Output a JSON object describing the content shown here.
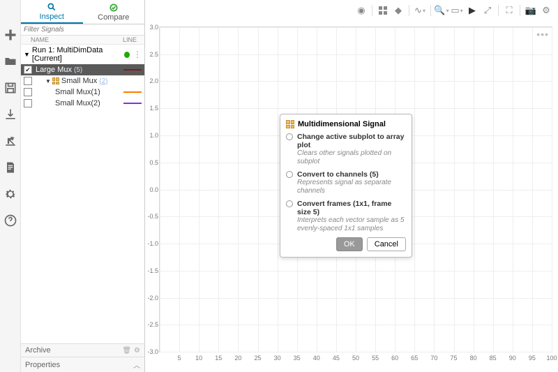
{
  "tabs": {
    "inspect": "Inspect",
    "compare": "Compare"
  },
  "filter_placeholder": "Filter Signals",
  "headers": {
    "name": "NAME",
    "line": "LINE"
  },
  "run": {
    "label": "Run 1: MultiDimData [Current]",
    "dot_color": "#1faa00"
  },
  "signals": [
    {
      "name": "Large Mux",
      "count": "(5)",
      "checked": true,
      "selected": true,
      "line_color": "#8a1a1a",
      "indent": 0,
      "has_grid": false
    },
    {
      "name": "Small Mux",
      "count": "(2)",
      "checked": false,
      "selected": false,
      "line_color": "",
      "indent": 1,
      "has_grid": true,
      "count_link": true
    },
    {
      "name": "Small Mux(1)",
      "count": "",
      "checked": false,
      "selected": false,
      "line_color": "#ff7a00",
      "indent": 2,
      "has_grid": false
    },
    {
      "name": "Small Mux(2)",
      "count": "",
      "checked": false,
      "selected": false,
      "line_color": "#8a2be2",
      "indent": 2,
      "has_grid": false
    }
  ],
  "sections": {
    "archive": "Archive",
    "properties": "Properties"
  },
  "chart": {
    "ymin": -3.0,
    "ymax": 3.0,
    "ystep": 0.5,
    "xmin": 0,
    "xmax": 100,
    "xstep": 5,
    "grid_color": "#eeeeee",
    "border_color": "#d8d8d8",
    "tick_color": "#777777",
    "tick_fontsize": 9
  },
  "dialog": {
    "title": "Multidimensional Signal",
    "options": [
      {
        "title": "Change active subplot to array plot",
        "desc": "Clears other signals plotted on subplot"
      },
      {
        "title": "Convert to channels (5)",
        "desc": "Represents signal as separate channels"
      },
      {
        "title": "Convert frames (1x1, frame size 5)",
        "desc": "Interprets each vector sample as 5 evenly-spaced 1x1 samples"
      }
    ],
    "ok": "OK",
    "cancel": "Cancel"
  }
}
